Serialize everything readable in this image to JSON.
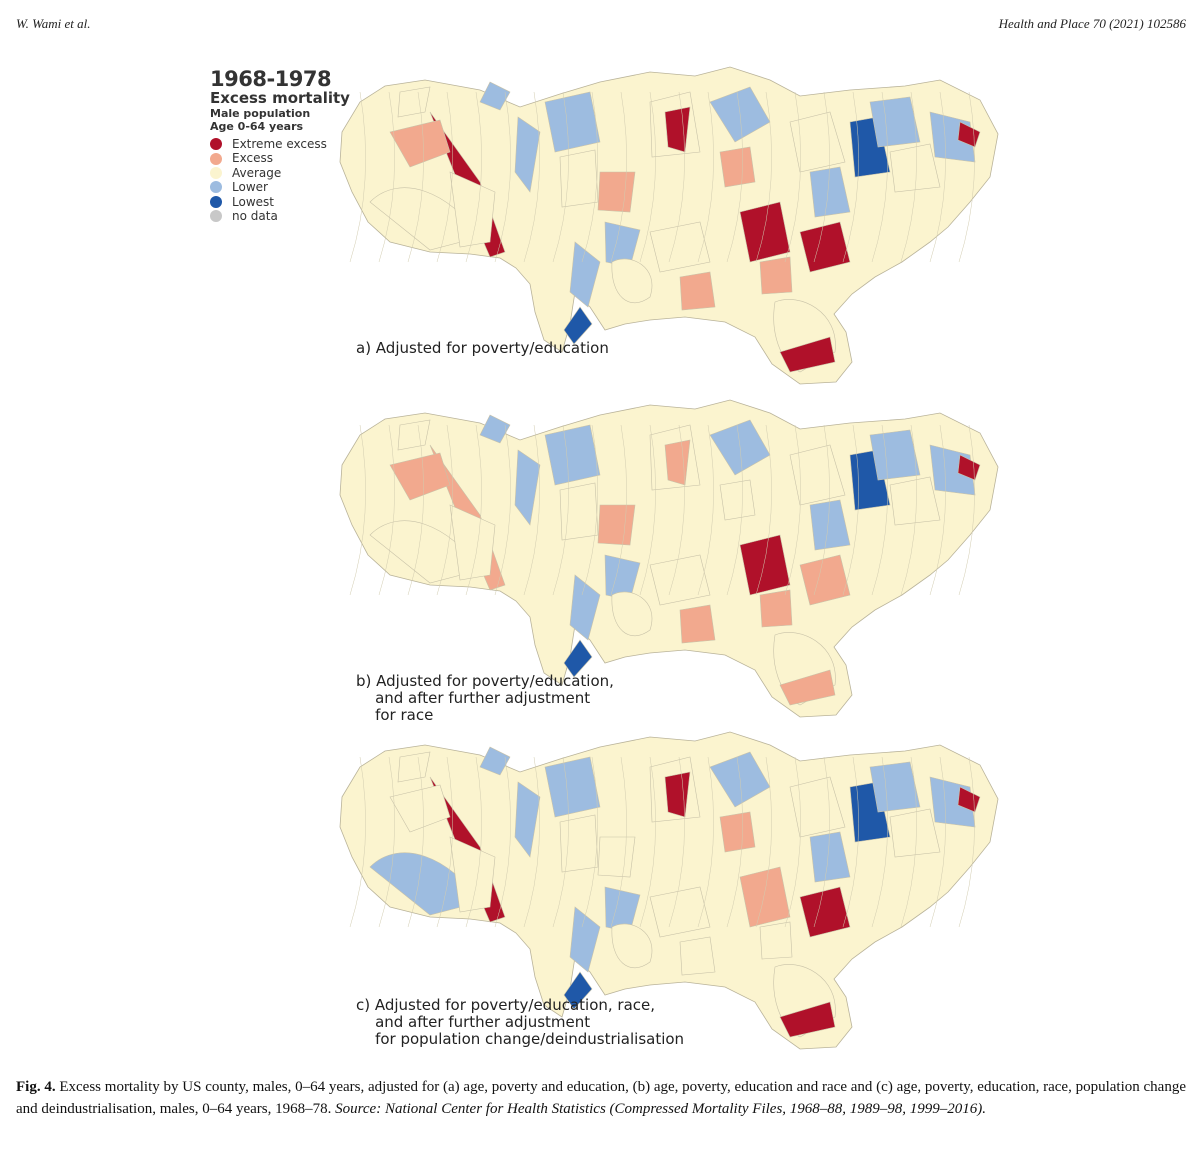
{
  "header": {
    "author": "W. Wami et al.",
    "journal": "Health and Place 70 (2021) 102586"
  },
  "legend": {
    "period": "1968-1978",
    "measure": "Excess mortality",
    "population": "Male population",
    "age": "Age 0-64 years",
    "categories": [
      {
        "label": "Extreme excess",
        "color": "#b0112a"
      },
      {
        "label": "Excess",
        "color": "#f2a98e"
      },
      {
        "label": "Average",
        "color": "#fbf4cf"
      },
      {
        "label": "Lower",
        "color": "#9dbce0"
      },
      {
        "label": "Lowest",
        "color": "#1f58a8"
      },
      {
        "label": "no data",
        "color": "#c8c8c8"
      }
    ]
  },
  "panels": [
    {
      "id": "a",
      "label_lines": [
        "a) Adjusted for poverty/education"
      ]
    },
    {
      "id": "b",
      "label_lines": [
        "b) Adjusted for poverty/education,",
        "    and after further adjustment",
        "    for race"
      ]
    },
    {
      "id": "c",
      "label_lines": [
        "c) Adjusted for poverty/education, race,",
        "    and after further adjustment",
        "    for population change/deindustrialisation"
      ]
    }
  ],
  "caption": {
    "label": "Fig. 4.",
    "text": " Excess mortality by US county, males, 0–64 years, adjusted for (a) age, poverty and education, (b) age, poverty, education and race and (c) age, poverty, education, race, population change and deindustrialisation, males, 0–64 years, 1968–78. ",
    "source": "Source: National Center for Health Statistics (Compressed Mortality Files, 1968–88, 1989–98, 1999–2016)."
  }
}
